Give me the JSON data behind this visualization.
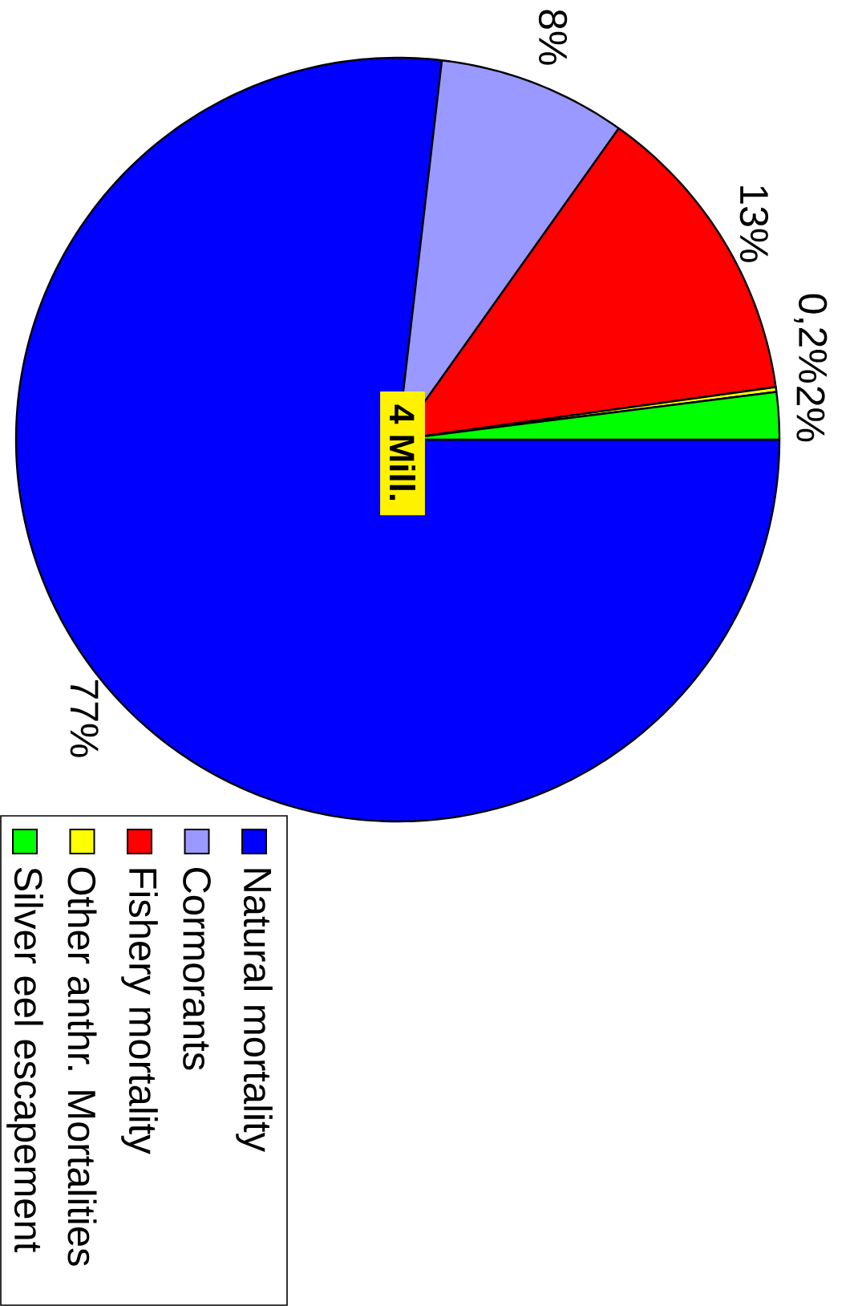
{
  "chart_data": {
    "type": "pie",
    "categories": [
      "Natural mortality",
      "Cormorants",
      "Fishery mortality",
      "Other anthr. Mortalities",
      "Silver eel escapement"
    ],
    "values": [
      77,
      8,
      13,
      0.2,
      2
    ],
    "value_labels": [
      "77%",
      "8%",
      "13%",
      "0,2%",
      "2%"
    ],
    "colors": [
      "#0000ff",
      "#9999ff",
      "#ff0000",
      "#ffff00",
      "#00ff00"
    ],
    "annotations": [
      "4 Mill."
    ],
    "legend": "bottom left"
  }
}
